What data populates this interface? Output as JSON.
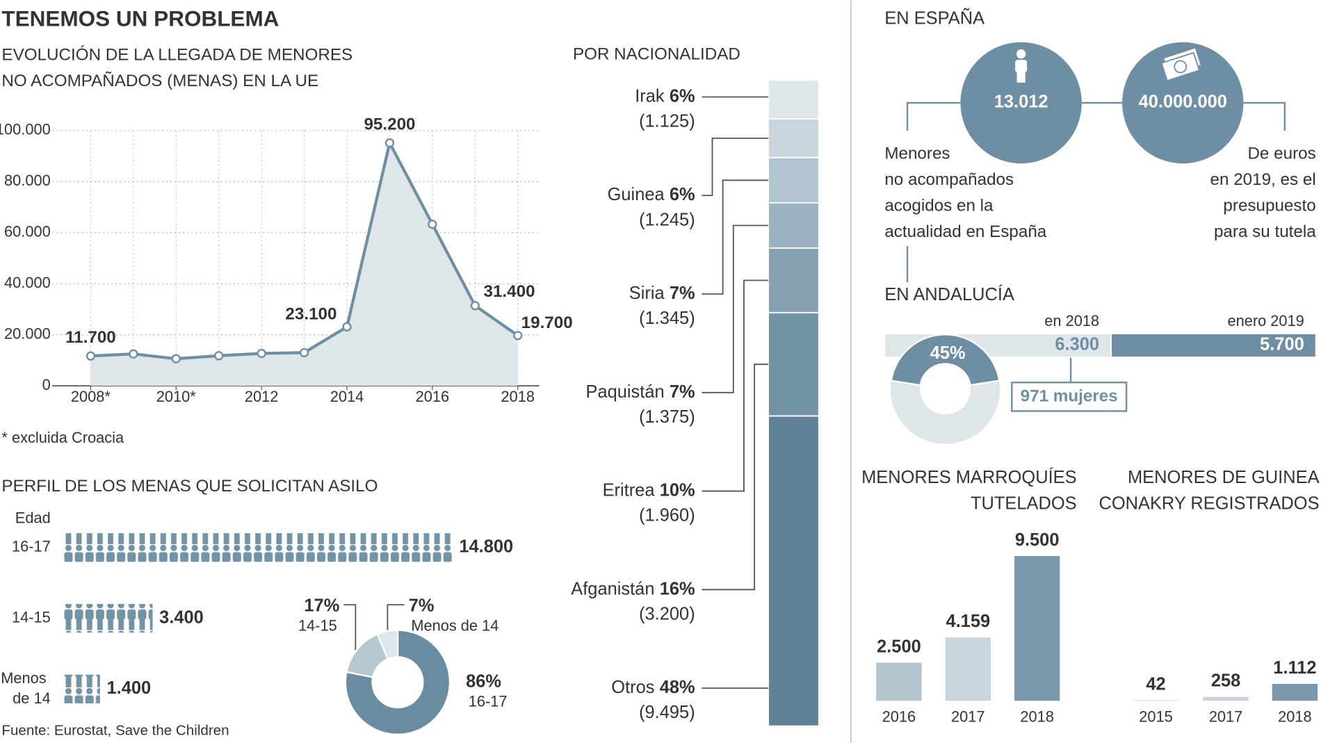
{
  "title": "TENEMOS UN PROBLEMA",
  "source": "Fuente: Eurostat, Save the Children",
  "spain": {
    "title": "EN ESPAÑA",
    "items": [
      {
        "value": "13.012",
        "caption": [
          "Menores",
          "no acompañados",
          "acogidos en la",
          "actualidad en España"
        ]
      },
      {
        "value": "40.000.000",
        "caption": [
          "De euros",
          "en 2019, es el",
          "presupuesto",
          "para su tutela"
        ]
      }
    ]
  },
  "chart_data": [
    {
      "type": "line",
      "title": [
        "EVOLUCIÓN DE LA LLEGADA DE MENORES",
        "NO ACOMPAÑADOS (MENAS) EN LA UE"
      ],
      "x": [
        2008,
        2009,
        2010,
        2011,
        2012,
        2013,
        2014,
        2015,
        2016,
        2017,
        2018
      ],
      "values": [
        11700,
        12500,
        10600,
        11800,
        12700,
        13000,
        23100,
        95200,
        63300,
        31400,
        19700
      ],
      "value_labels": [
        "11.700",
        null,
        null,
        null,
        null,
        null,
        "23.100",
        "95.200",
        null,
        "31.400",
        "19.700"
      ],
      "xlim": [
        2007.1,
        2018.5
      ],
      "ylim": [
        0,
        100000
      ],
      "xticks": [
        {
          "value": 2008,
          "label": "2008*"
        },
        {
          "value": 2010,
          "label": "2010*"
        },
        2012,
        2014,
        2016,
        2018
      ],
      "yticks": [
        0,
        {
          "value": 20000,
          "label": "20.000"
        },
        {
          "value": 40000,
          "label": "40.000"
        },
        {
          "value": 60000,
          "label": "60.000"
        },
        {
          "value": 80000,
          "label": "80.000"
        },
        {
          "value": 100000,
          "label": "100.000"
        }
      ],
      "grid": true,
      "color": "#6e8fa3",
      "area_color": "#dfe6ea",
      "note": "* excluida Croacia"
    },
    {
      "type": "pictogram",
      "title": "PERFIL DE LOS MENAS QUE SOLICITAN ASILO",
      "axis_label": "Edad",
      "categories": [
        "16-17",
        "14-15",
        "Menos de 14"
      ],
      "values": [
        14800,
        3400,
        1400
      ],
      "value_labels": [
        "14.800",
        "3.400",
        "1.400"
      ],
      "color": "#7393a7"
    },
    {
      "type": "donut",
      "categories": [
        "16-17",
        "14-15",
        "Menos de 14"
      ],
      "values": [
        86,
        17,
        7
      ],
      "value_labels": [
        "86%",
        "17%",
        "7%"
      ],
      "colors": [
        "#6b8ca0",
        "#b7c7d1",
        "#dfe6ea"
      ]
    },
    {
      "type": "stacked-column",
      "title": "POR NACIONALIDAD",
      "categories": [
        "Irak",
        "Guinea",
        "Siria",
        "Paquistán",
        "Eritrea",
        "Afganistán",
        "Otros"
      ],
      "values": [
        6,
        6,
        7,
        7,
        10,
        16,
        48
      ],
      "value_labels": [
        "6%",
        "6%",
        "7%",
        "7%",
        "10%",
        "16%",
        "48%"
      ],
      "counts": [
        1125,
        1245,
        1345,
        1375,
        1960,
        3200,
        9495
      ],
      "count_labels": [
        "(1.125)",
        "(1.245)",
        "(1.345)",
        "(1.375)",
        "(1.960)",
        "(3.200)",
        "(9.495)"
      ],
      "colors": [
        "#dfe6ea",
        "#c8d5dd",
        "#b2c4cf",
        "#9cb3c1",
        "#87a2b3",
        "#7293a6",
        "#5f8296"
      ]
    },
    {
      "type": "stacked-hbar",
      "title": "EN ANDALUCÍA",
      "categories": [
        "en 2018",
        "enero 2019"
      ],
      "values": [
        6300,
        5700
      ],
      "value_labels": [
        "6.300",
        "5.700"
      ],
      "colors": [
        "#dfe6ea",
        "#6e8fa3"
      ],
      "annotation": "971 mujeres"
    },
    {
      "type": "donut",
      "values": [
        45
      ],
      "value_labels": [
        "45%"
      ],
      "colors": [
        "#6e8fa3",
        "#dfe6ea"
      ]
    },
    {
      "type": "bar",
      "title": [
        "MENORES MARROQUÍES",
        "TUTELADOS"
      ],
      "categories": [
        "2016",
        "2017",
        "2018"
      ],
      "values": [
        2500,
        4159,
        9500
      ],
      "value_labels": [
        "2.500",
        "4.159",
        "9.500"
      ],
      "colors": [
        "#b4c5cf",
        "#c8d5dc",
        "#7c99ab"
      ],
      "ylim": [
        0,
        10000
      ]
    },
    {
      "type": "bar",
      "title": [
        "MENORES DE GUINEA",
        "CONAKRY REGISTRADOS"
      ],
      "categories": [
        "2015",
        "2017",
        "2018"
      ],
      "values": [
        42,
        258,
        1112
      ],
      "value_labels": [
        "42",
        "258",
        "1.112"
      ],
      "colors": [
        "#c8d5dc",
        "#c8d5dc",
        "#7c99ab"
      ],
      "ylim": [
        0,
        10000
      ]
    }
  ]
}
